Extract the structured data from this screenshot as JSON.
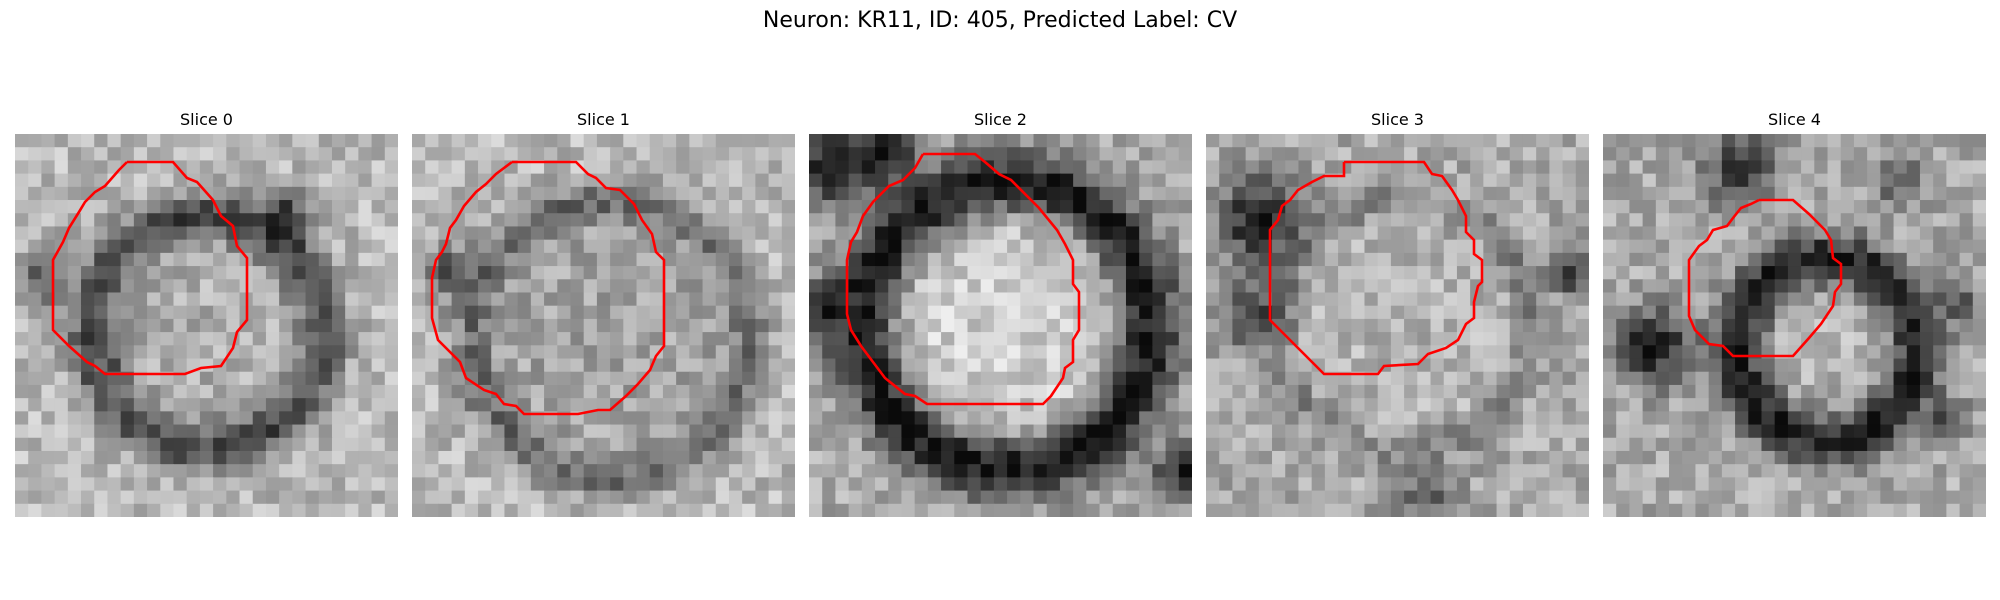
{
  "figure": {
    "title": "Neuron: KR11, ID: 405, Predicted Label: CV"
  },
  "contour_color": "#ff0000",
  "slices": [
    {
      "title": "Slice 0"
    },
    {
      "title": "Slice 1"
    },
    {
      "title": "Slice 2"
    },
    {
      "title": "Slice 3"
    },
    {
      "title": "Slice 4"
    }
  ]
}
